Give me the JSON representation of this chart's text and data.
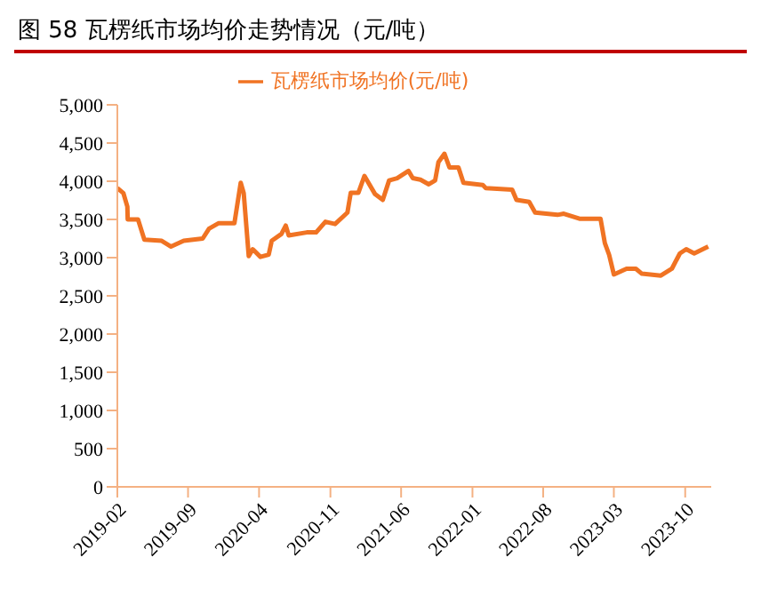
{
  "chart_data": {
    "type": "line",
    "title": "图 58  瓦楞纸市场均价走势情况（元/吨）",
    "x": [
      "2019-02-01",
      "2019-02-19",
      "2019-03-03",
      "2019-03-04",
      "2019-04-04",
      "2019-04-23",
      "2019-06-14",
      "2019-07-12",
      "2019-08-19",
      "2019-10-15",
      "2019-11-03",
      "2019-12-01",
      "2020-01-18",
      "2020-02-06",
      "2020-02-15",
      "2020-03-01",
      "2020-03-13",
      "2020-04-05",
      "2020-04-30",
      "2020-05-09",
      "2020-06-07",
      "2020-06-20",
      "2020-06-29",
      "2020-08-22",
      "2020-09-19",
      "2020-10-17",
      "2020-11-15",
      "2020-12-22",
      "2021-01-01",
      "2021-01-24",
      "2021-02-11",
      "2021-03-15",
      "2021-04-07",
      "2021-04-26",
      "2021-05-20",
      "2021-06-23",
      "2021-07-06",
      "2021-07-29",
      "2021-08-23",
      "2021-09-11",
      "2021-09-21",
      "2021-10-09",
      "2021-10-24",
      "2021-11-20",
      "2021-12-05",
      "2022-02-01",
      "2022-02-10",
      "2022-04-30",
      "2022-05-13",
      "2022-06-20",
      "2022-07-08",
      "2022-09-13",
      "2022-10-02",
      "2022-11-18",
      "2023-01-20",
      "2023-02-02",
      "2023-02-15",
      "2023-03-01",
      "2023-04-08",
      "2023-05-06",
      "2023-05-24",
      "2023-07-20",
      "2023-08-22",
      "2023-09-15",
      "2023-10-04",
      "2023-10-28",
      "2023-12-09"
    ],
    "series": [
      {
        "name": "瓦楞纸市场均价(元/吨)",
        "color": "#f07323",
        "values": [
          3910,
          3845,
          3667,
          3500,
          3500,
          3235,
          3220,
          3145,
          3220,
          3250,
          3380,
          3450,
          3450,
          3980,
          3845,
          3020,
          3110,
          3010,
          3040,
          3220,
          3310,
          3420,
          3290,
          3330,
          3330,
          3470,
          3440,
          3590,
          3850,
          3850,
          4070,
          3830,
          3755,
          4010,
          4040,
          4135,
          4040,
          4020,
          3960,
          4010,
          4250,
          4360,
          4180,
          4180,
          3980,
          3950,
          3910,
          3890,
          3755,
          3730,
          3590,
          3560,
          3575,
          3510,
          3510,
          3190,
          3035,
          2780,
          2855,
          2855,
          2790,
          2765,
          2855,
          3055,
          3110,
          3055,
          3145
        ]
      }
    ],
    "xlim": [
      "2019-02-01",
      "2023-12-18"
    ],
    "xticks": [
      "2019-02",
      "2019-09",
      "2020-04",
      "2020-11",
      "2021-06",
      "2022-01",
      "2022-08",
      "2023-03",
      "2023-10"
    ],
    "ylim": [
      0,
      5000
    ],
    "yticks": [
      0,
      500,
      {
        "value": 1000,
        "label": "1,000"
      },
      {
        "value": 1500,
        "label": "1,500"
      },
      {
        "value": 2000,
        "label": "2,000"
      },
      {
        "value": 2500,
        "label": "2,500"
      },
      {
        "value": 3000,
        "label": "3,000"
      },
      {
        "value": 3500,
        "label": "3,500"
      },
      {
        "value": 4000,
        "label": "4,000"
      },
      {
        "value": 4500,
        "label": "4,500"
      },
      {
        "value": 5000,
        "label": "5,000"
      }
    ],
    "grid": false,
    "legend": "top",
    "marker": "none",
    "line_style": "solid"
  }
}
